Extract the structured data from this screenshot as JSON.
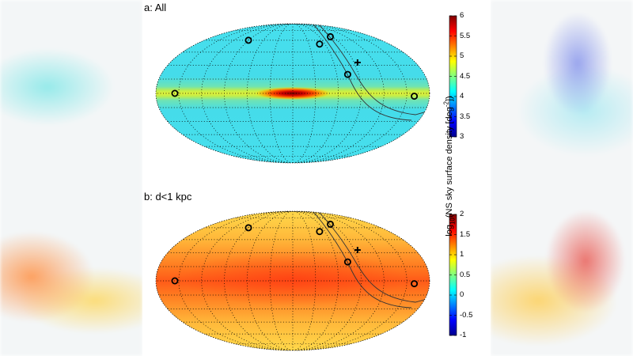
{
  "chart_data": [
    {
      "type": "heatmap",
      "projection": "mollweide",
      "title": "a: All",
      "colormap": "jet",
      "clim": [
        3,
        6
      ],
      "colorbar_ticks": [
        "6",
        "5.5",
        "5",
        "4.5",
        "4",
        "3.5",
        "3"
      ],
      "grid": true,
      "markers": [
        {
          "shape": "diamond",
          "l": 90,
          "b": 60
        },
        {
          "shape": "diamond",
          "l": 155,
          "b": 0
        },
        {
          "shape": "diamond",
          "l": -50,
          "b": 55
        },
        {
          "shape": "diamond",
          "l": -85,
          "b": 65
        },
        {
          "shape": "diamond",
          "l": -75,
          "b": 20
        },
        {
          "shape": "diamond",
          "l": -160,
          "b": -3
        },
        {
          "shape": "plus",
          "l": -95,
          "b": 33
        }
      ]
    },
    {
      "type": "heatmap",
      "projection": "mollweide",
      "title": "b: d<1 kpc",
      "colormap": "jet",
      "clim": [
        -1,
        2
      ],
      "colorbar_ticks": [
        "2",
        "1.5",
        "1",
        "0.5",
        "0",
        "-0.5",
        "-1"
      ],
      "grid": true,
      "markers": [
        {
          "shape": "diamond",
          "l": 90,
          "b": 60
        },
        {
          "shape": "diamond",
          "l": 155,
          "b": 0
        },
        {
          "shape": "diamond",
          "l": -50,
          "b": 55
        },
        {
          "shape": "diamond",
          "l": -85,
          "b": 65
        },
        {
          "shape": "diamond",
          "l": -75,
          "b": 20
        },
        {
          "shape": "diamond",
          "l": -160,
          "b": -3
        },
        {
          "shape": "plus",
          "l": -95,
          "b": 33
        }
      ]
    }
  ],
  "colorbar_label": "log10(NS sky surface density [deg-2])"
}
